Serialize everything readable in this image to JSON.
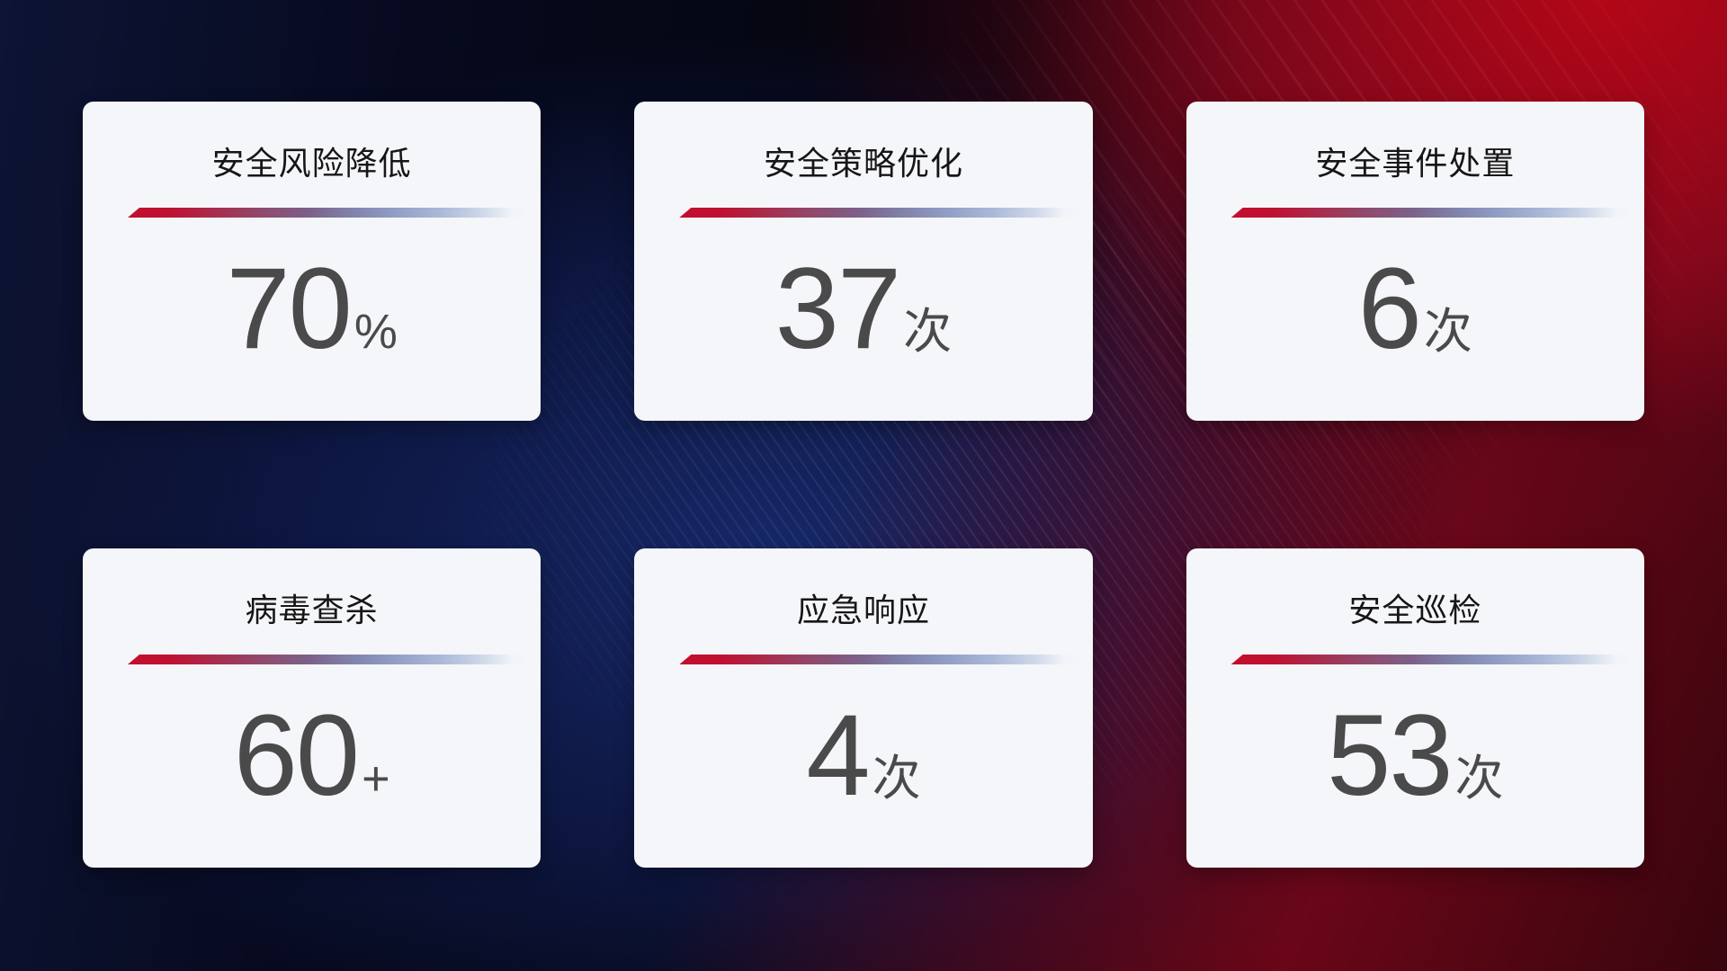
{
  "colors": {
    "card_bg": "#f5f6f9",
    "title_color": "#161616",
    "value_color": "#4a4a4b",
    "divider_red": "#c30d2e",
    "divider_blue": "#aab8d8",
    "bg_red_top_right": "#b00717",
    "bg_maroon_bottom_right": "#2a0609",
    "bg_blue_center": "#16256b",
    "bg_navy_left": "#0d1434"
  },
  "cards": [
    {
      "title": "安全风险降低",
      "value": "70",
      "unit": "%"
    },
    {
      "title": "安全策略优化",
      "value": "37",
      "unit": "次"
    },
    {
      "title": "安全事件处置",
      "value": "6",
      "unit": "次"
    },
    {
      "title": "病毒查杀",
      "value": "60",
      "unit": "+"
    },
    {
      "title": "应急响应",
      "value": "4",
      "unit": "次"
    },
    {
      "title": "安全巡检",
      "value": "53",
      "unit": "次"
    }
  ]
}
